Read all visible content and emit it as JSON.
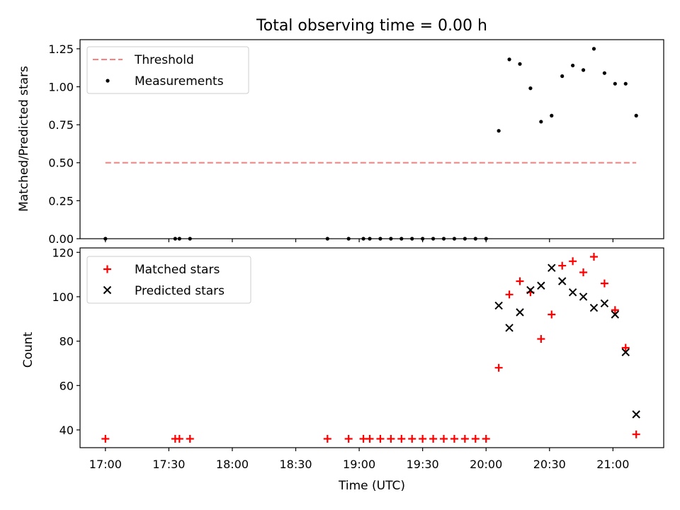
{
  "figure": {
    "title": "Total observing time = 0.00 h",
    "xlabel": "Time (UTC)"
  },
  "chart_data": [
    {
      "type": "scatter",
      "ylabel": "Matched/Predicted stars",
      "xlim": [
        "16:48",
        "21:24"
      ],
      "ylim": [
        0,
        1.31
      ],
      "yticks": [
        0.0,
        0.25,
        0.5,
        0.75,
        1.0,
        1.25
      ],
      "ytick_labels": [
        "0.00",
        "0.25",
        "0.50",
        "0.75",
        "1.00",
        "1.25"
      ],
      "grid": false,
      "legend": "upper left",
      "series": [
        {
          "name": "Threshold",
          "kind": "line",
          "color": "#ff7f7f",
          "x": [
            "17:00",
            "21:11"
          ],
          "y": [
            0.5,
            0.5
          ]
        },
        {
          "name": "Measurements",
          "kind": "points",
          "color": "#000000",
          "x": [
            "17:00",
            "17:33",
            "17:35",
            "17:40",
            "18:45",
            "18:55",
            "19:02",
            "19:05",
            "19:10",
            "19:15",
            "19:20",
            "19:25",
            "19:30",
            "19:35",
            "19:40",
            "19:45",
            "19:50",
            "19:55",
            "20:00",
            "20:06",
            "20:11",
            "20:16",
            "20:21",
            "20:26",
            "20:31",
            "20:36",
            "20:41",
            "20:46",
            "20:51",
            "20:56",
            "21:01",
            "21:06",
            "21:11"
          ],
          "y": [
            0,
            0,
            0,
            0,
            0,
            0,
            0,
            0,
            0,
            0,
            0,
            0,
            0,
            0,
            0,
            0,
            0,
            0,
            0,
            0.71,
            1.18,
            1.15,
            0.99,
            0.77,
            0.81,
            1.07,
            1.14,
            1.11,
            1.25,
            1.09,
            1.02,
            1.02,
            0.81
          ]
        }
      ]
    },
    {
      "type": "scatter",
      "ylabel": "Count",
      "xlim": [
        "16:48",
        "21:24"
      ],
      "ylim": [
        32,
        122
      ],
      "yticks": [
        40,
        60,
        80,
        100,
        120
      ],
      "ytick_labels": [
        "40",
        "60",
        "80",
        "100",
        "120"
      ],
      "xtick_labels": [
        "17:00",
        "17:30",
        "18:00",
        "18:30",
        "19:00",
        "19:30",
        "20:00",
        "20:30",
        "21:00"
      ],
      "grid": false,
      "legend": "upper left",
      "series": [
        {
          "name": "Matched stars",
          "kind": "plus",
          "color": "#ff0000",
          "x": [
            "17:00",
            "17:33",
            "17:35",
            "17:40",
            "18:45",
            "18:55",
            "19:02",
            "19:05",
            "19:10",
            "19:15",
            "19:20",
            "19:25",
            "19:30",
            "19:35",
            "19:40",
            "19:45",
            "19:50",
            "19:55",
            "20:00",
            "20:06",
            "20:11",
            "20:16",
            "20:21",
            "20:26",
            "20:31",
            "20:36",
            "20:41",
            "20:46",
            "20:51",
            "20:56",
            "21:01",
            "21:06",
            "21:11"
          ],
          "y": [
            36,
            36,
            36,
            36,
            36,
            36,
            36,
            36,
            36,
            36,
            36,
            36,
            36,
            36,
            36,
            36,
            36,
            36,
            36,
            68,
            101,
            107,
            102,
            81,
            92,
            114,
            116,
            111,
            118,
            106,
            94,
            77,
            38
          ]
        },
        {
          "name": "Predicted stars",
          "kind": "x",
          "color": "#000000",
          "x": [
            "20:06",
            "20:11",
            "20:16",
            "20:21",
            "20:26",
            "20:31",
            "20:36",
            "20:41",
            "20:46",
            "20:51",
            "20:56",
            "21:01",
            "21:06",
            "21:11"
          ],
          "y": [
            96,
            86,
            93,
            103,
            105,
            113,
            107,
            102,
            100,
            95,
            97,
            92,
            75,
            47
          ]
        }
      ]
    }
  ]
}
